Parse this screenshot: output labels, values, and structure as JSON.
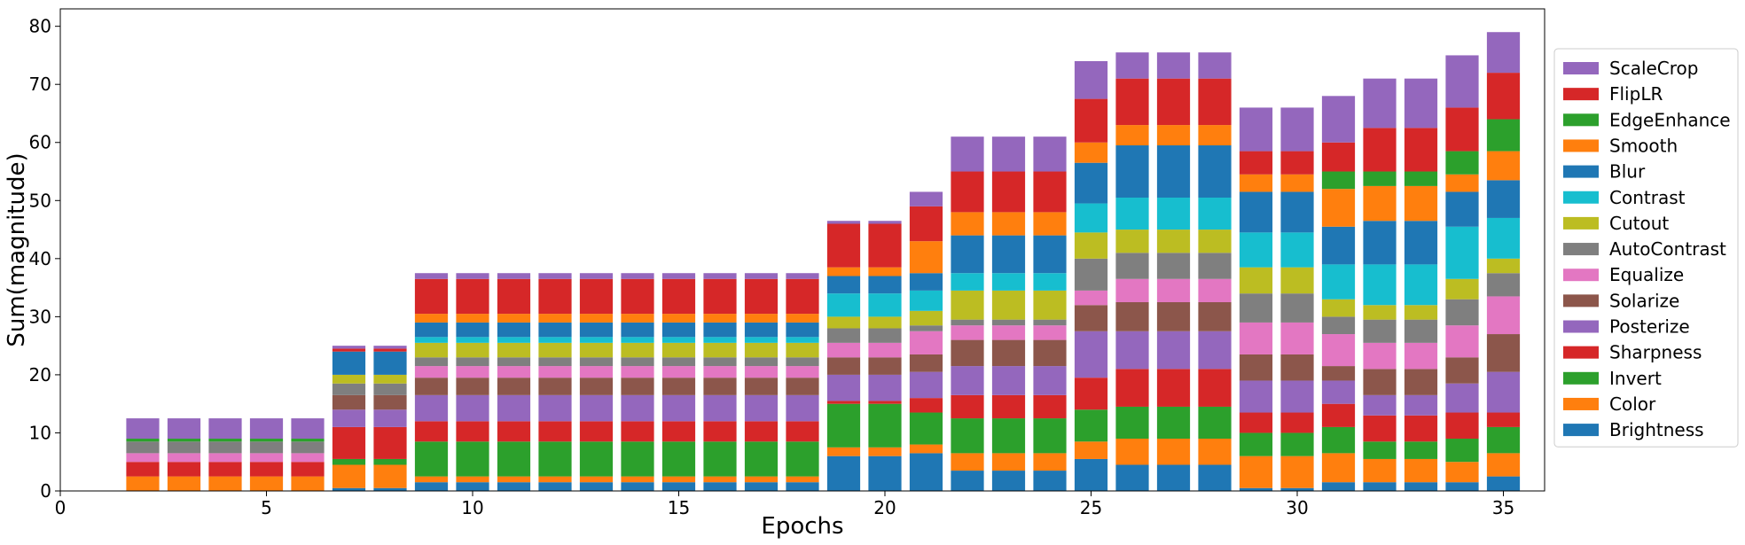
{
  "chart_data": {
    "type": "bar",
    "stacked": true,
    "xlabel": "Epochs",
    "ylabel": "Sum(magnitude)",
    "xlim": [
      0,
      36
    ],
    "ylim": [
      0,
      83
    ],
    "xticks": [
      0,
      5,
      10,
      15,
      20,
      25,
      30,
      35
    ],
    "yticks": [
      0,
      10,
      20,
      30,
      40,
      50,
      60,
      70,
      80
    ],
    "grid": false,
    "legend_position": "right",
    "x": [
      2,
      3,
      4,
      5,
      6,
      7,
      8,
      9,
      10,
      11,
      12,
      13,
      14,
      15,
      16,
      17,
      18,
      19,
      20,
      21,
      22,
      23,
      24,
      25,
      26,
      27,
      28,
      29,
      30,
      31,
      32,
      33,
      34,
      35
    ],
    "series": [
      {
        "name": "Brightness",
        "color": "#1f77b4",
        "values": [
          0,
          0,
          0,
          0,
          0,
          0.5,
          0.5,
          1.5,
          1.5,
          1.5,
          1.5,
          1.5,
          1.5,
          1.5,
          1.5,
          1.5,
          1.5,
          6,
          6,
          6.5,
          3.5,
          3.5,
          3.5,
          5.5,
          4.5,
          4.5,
          4.5,
          0.5,
          0.5,
          1.5,
          1.5,
          1.5,
          1.5,
          2.5
        ]
      },
      {
        "name": "Color",
        "color": "#ff7f0e",
        "values": [
          2.5,
          2.5,
          2.5,
          2.5,
          2.5,
          4,
          4,
          1,
          1,
          1,
          1,
          1,
          1,
          1,
          1,
          1,
          1,
          1.5,
          1.5,
          1.5,
          3,
          3,
          3,
          3,
          4.5,
          4.5,
          4.5,
          5.5,
          5.5,
          5,
          4,
          4,
          3.5,
          4
        ]
      },
      {
        "name": "Invert",
        "color": "#2ca02c",
        "values": [
          0,
          0,
          0,
          0,
          0,
          1,
          1,
          6,
          6,
          6,
          6,
          6,
          6,
          6,
          6,
          6,
          6,
          7.5,
          7.5,
          5.5,
          6,
          6,
          6,
          5.5,
          5.5,
          5.5,
          5.5,
          4,
          4,
          4.5,
          3,
          3,
          4,
          4.5
        ]
      },
      {
        "name": "Sharpness",
        "color": "#d62728",
        "values": [
          2.5,
          2.5,
          2.5,
          2.5,
          2.5,
          5.5,
          5.5,
          3.5,
          3.5,
          3.5,
          3.5,
          3.5,
          3.5,
          3.5,
          3.5,
          3.5,
          3.5,
          0.5,
          0.5,
          2.5,
          4,
          4,
          4,
          5.5,
          6.5,
          6.5,
          6.5,
          3.5,
          3.5,
          4,
          4.5,
          4.5,
          4.5,
          2.5
        ]
      },
      {
        "name": "Posterize",
        "color": "#9467bd",
        "values": [
          0,
          0,
          0,
          0,
          0,
          3,
          3,
          4.5,
          4.5,
          4.5,
          4.5,
          4.5,
          4.5,
          4.5,
          4.5,
          4.5,
          4.5,
          4.5,
          4.5,
          4.5,
          5,
          5,
          5,
          8,
          6.5,
          6.5,
          6.5,
          5.5,
          5.5,
          4,
          3.5,
          3.5,
          5,
          7
        ]
      },
      {
        "name": "Solarize",
        "color": "#8c564b",
        "values": [
          0,
          0,
          0,
          0,
          0,
          2.5,
          2.5,
          3,
          3,
          3,
          3,
          3,
          3,
          3,
          3,
          3,
          3,
          3,
          3,
          3,
          4.5,
          4.5,
          4.5,
          4.5,
          5,
          5,
          5,
          4.5,
          4.5,
          2.5,
          4.5,
          4.5,
          4.5,
          6.5
        ]
      },
      {
        "name": "Equalize",
        "color": "#e377c2",
        "values": [
          1.5,
          1.5,
          1.5,
          1.5,
          1.5,
          0,
          0,
          2,
          2,
          2,
          2,
          2,
          2,
          2,
          2,
          2,
          2,
          2.5,
          2.5,
          4,
          2.5,
          2.5,
          2.5,
          2.5,
          4,
          4,
          4,
          5.5,
          5.5,
          5.5,
          4.5,
          4.5,
          5.5,
          6.5
        ]
      },
      {
        "name": "AutoContrast",
        "color": "#7f7f7f",
        "values": [
          2,
          2,
          2,
          2,
          2,
          2,
          2,
          1.5,
          1.5,
          1.5,
          1.5,
          1.5,
          1.5,
          1.5,
          1.5,
          1.5,
          1.5,
          2.5,
          2.5,
          1,
          1,
          1,
          1,
          5.5,
          4.5,
          4.5,
          4.5,
          5,
          5,
          3,
          4,
          4,
          4.5,
          4
        ]
      },
      {
        "name": "Cutout",
        "color": "#bcbd22",
        "values": [
          0,
          0,
          0,
          0,
          0,
          1.5,
          1.5,
          2.5,
          2.5,
          2.5,
          2.5,
          2.5,
          2.5,
          2.5,
          2.5,
          2.5,
          2.5,
          2,
          2,
          2.5,
          5,
          5,
          5,
          4.5,
          4,
          4,
          4,
          4.5,
          4.5,
          3,
          2.5,
          2.5,
          3.5,
          2.5
        ]
      },
      {
        "name": "Contrast",
        "color": "#17becf",
        "values": [
          0,
          0,
          0,
          0,
          0,
          0,
          0,
          1,
          1,
          1,
          1,
          1,
          1,
          1,
          1,
          1,
          1,
          4,
          4,
          3.5,
          3,
          3,
          3,
          5,
          5.5,
          5.5,
          5.5,
          6,
          6,
          6,
          7,
          7,
          9,
          7
        ]
      },
      {
        "name": "Blur",
        "color": "#1f77b4",
        "values": [
          0,
          0,
          0,
          0,
          0,
          4,
          4,
          2.5,
          2.5,
          2.5,
          2.5,
          2.5,
          2.5,
          2.5,
          2.5,
          2.5,
          2.5,
          3,
          3,
          3,
          6.5,
          6.5,
          6.5,
          7,
          9,
          9,
          9,
          7,
          7,
          6.5,
          7.5,
          7.5,
          6,
          6.5
        ]
      },
      {
        "name": "Smooth",
        "color": "#ff7f0e",
        "values": [
          0,
          0,
          0,
          0,
          0,
          0,
          0,
          1.5,
          1.5,
          1.5,
          1.5,
          1.5,
          1.5,
          1.5,
          1.5,
          1.5,
          1.5,
          1.5,
          1.5,
          5.5,
          4,
          4,
          4,
          3.5,
          3.5,
          3.5,
          3.5,
          3,
          3,
          6.5,
          6,
          6,
          3,
          5
        ]
      },
      {
        "name": "EdgeEnhance",
        "color": "#2ca02c",
        "values": [
          0.5,
          0.5,
          0.5,
          0.5,
          0.5,
          0,
          0,
          0,
          0,
          0,
          0,
          0,
          0,
          0,
          0,
          0,
          0,
          0,
          0,
          0,
          0,
          0,
          0,
          0,
          0,
          0,
          0,
          0,
          0,
          3,
          2.5,
          2.5,
          4,
          5.5
        ]
      },
      {
        "name": "FlipLR",
        "color": "#d62728",
        "values": [
          0,
          0,
          0,
          0,
          0,
          0.5,
          0.5,
          6,
          6,
          6,
          6,
          6,
          6,
          6,
          6,
          6,
          6,
          7.5,
          7.5,
          6,
          7,
          7,
          7,
          7.5,
          8,
          8,
          8,
          4,
          4,
          5,
          7.5,
          7.5,
          7.5,
          8
        ]
      },
      {
        "name": "ScaleCrop",
        "color": "#9467bd",
        "values": [
          3.5,
          3.5,
          3.5,
          3.5,
          3.5,
          0.5,
          0.5,
          1,
          1,
          1,
          1,
          1,
          1,
          1,
          1,
          1,
          1,
          0.5,
          0.5,
          2.5,
          6,
          6,
          6,
          6.5,
          4.5,
          4.5,
          4.5,
          7.5,
          7.5,
          8,
          8.5,
          8.5,
          9,
          7
        ]
      }
    ]
  }
}
